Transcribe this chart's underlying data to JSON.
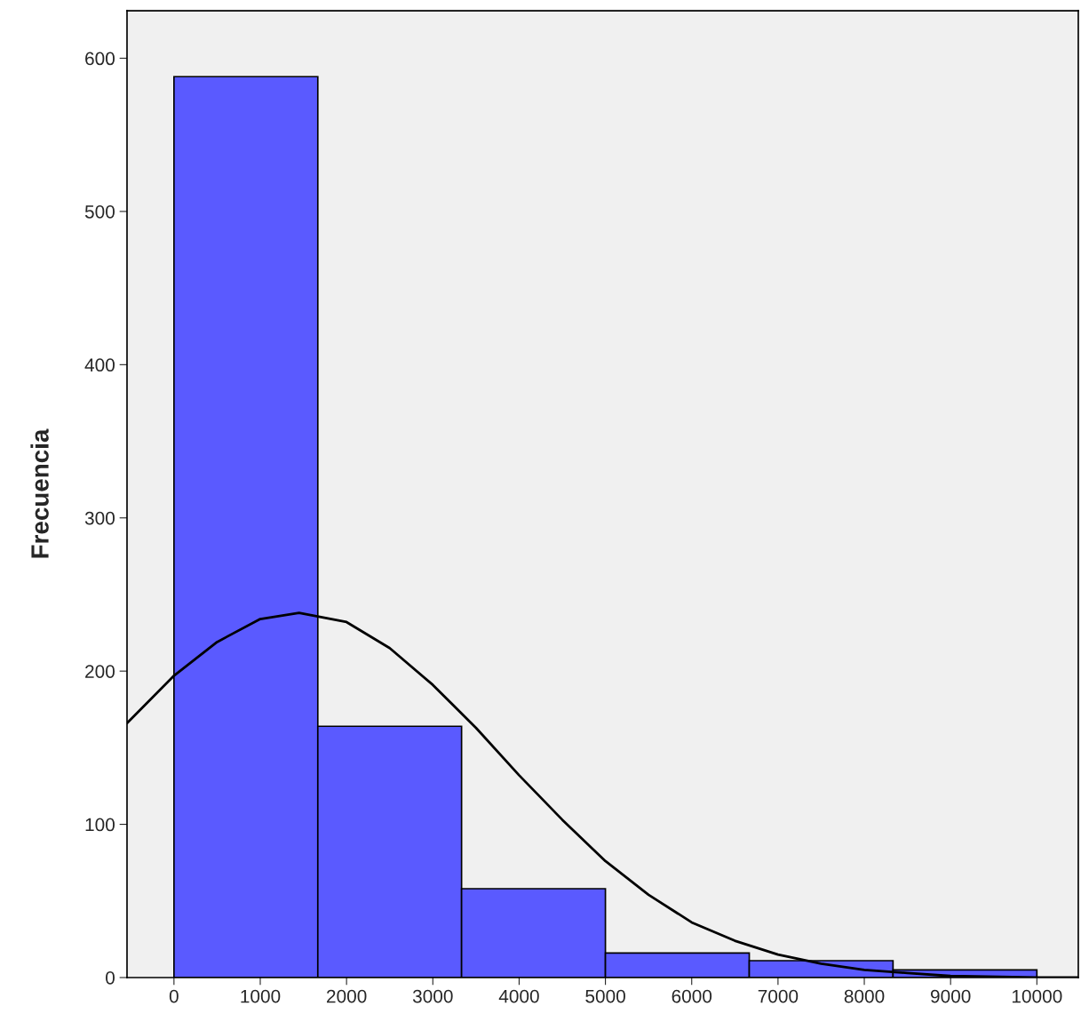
{
  "chart_data": {
    "type": "histogram",
    "ylabel": "Frecuencia",
    "bins": [
      0,
      1667,
      3333,
      5000,
      6667,
      8333,
      10000
    ],
    "values": [
      588,
      164,
      58,
      16,
      11,
      5
    ],
    "color": "#5a5aff",
    "series": [
      {
        "type": "line",
        "color": "#000000",
        "x": [
          -544,
          0,
          500,
          1000,
          1450,
          2000,
          2500,
          3000,
          3500,
          4000,
          4500,
          5000,
          5500,
          6000,
          6500,
          7000,
          7500,
          8000,
          8500,
          9000,
          10000,
          10480
        ],
        "values": [
          166,
          197,
          219,
          234,
          238,
          232,
          215,
          191,
          163,
          132,
          103,
          76,
          54,
          36,
          24,
          15,
          9,
          5,
          3,
          1,
          0,
          0
        ]
      }
    ],
    "xlim": [
      -544,
      10480
    ],
    "ylim": [
      0,
      631
    ],
    "xticks": [
      0,
      1000,
      2000,
      3000,
      4000,
      5000,
      6000,
      7000,
      8000,
      9000,
      10000
    ],
    "yticks": [
      0,
      100,
      200,
      300,
      400,
      500,
      600
    ],
    "grid": false
  }
}
